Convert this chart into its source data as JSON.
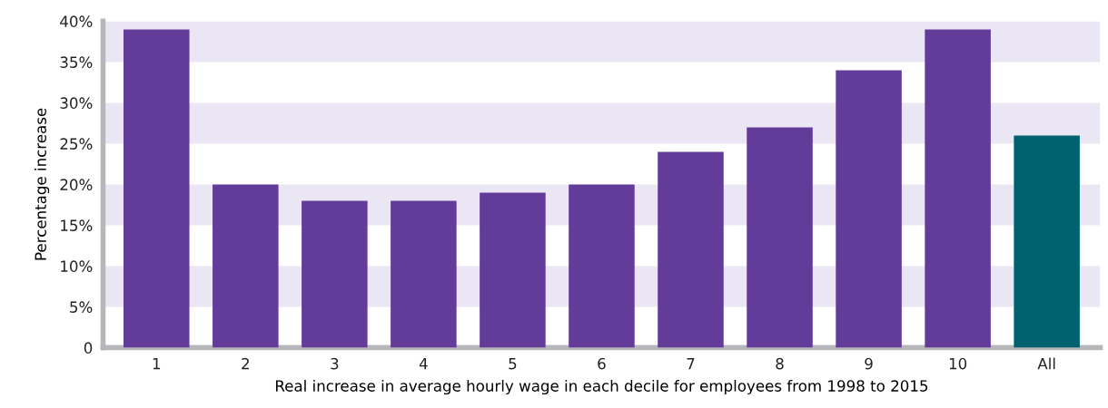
{
  "chart_data": {
    "type": "bar",
    "ylabel": "Percentage increase",
    "xlabel": "Real increase in average hourly wage in each decile for employees from 1998 to 2015",
    "categories": [
      "1",
      "2",
      "3",
      "4",
      "5",
      "6",
      "7",
      "8",
      "9",
      "10",
      "All"
    ],
    "values": [
      39,
      20,
      18,
      18,
      19,
      20,
      24,
      27,
      34,
      39,
      26
    ],
    "colors": [
      "#633c9a",
      "#633c9a",
      "#633c9a",
      "#633c9a",
      "#633c9a",
      "#633c9a",
      "#633c9a",
      "#633c9a",
      "#633c9a",
      "#633c9a",
      "#00626e"
    ],
    "ylim": [
      0,
      40
    ],
    "yticks": [
      {
        "value": 0,
        "label": "0"
      },
      {
        "value": 5,
        "label": "5%"
      },
      {
        "value": 10,
        "label": "10%"
      },
      {
        "value": 15,
        "label": "15%"
      },
      {
        "value": 20,
        "label": "20%"
      },
      {
        "value": 25,
        "label": "25%"
      },
      {
        "value": 30,
        "label": "30%"
      },
      {
        "value": 35,
        "label": "35%"
      },
      {
        "value": 40,
        "label": "40%"
      }
    ],
    "bands": [
      {
        "axis": "y",
        "from": 5,
        "to": 10,
        "color": "#ebe6f3"
      },
      {
        "axis": "y",
        "from": 15,
        "to": 20,
        "color": "#ebe6f3"
      },
      {
        "axis": "y",
        "from": 25,
        "to": 30,
        "color": "#ebe6f3"
      },
      {
        "axis": "y",
        "from": 35,
        "to": 40,
        "color": "#ebe6f3"
      }
    ]
  }
}
